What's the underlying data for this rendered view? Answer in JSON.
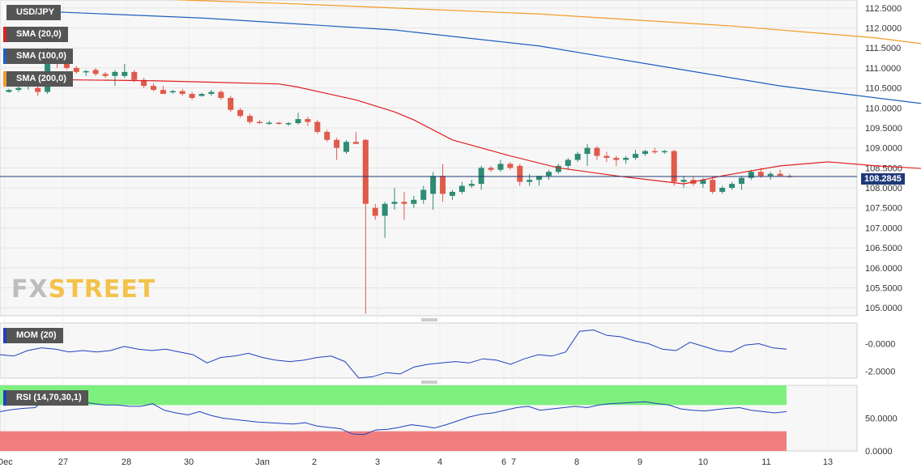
{
  "chart_data": {
    "type": "candlestick",
    "symbol": "USD/JPY",
    "current_price": "108.2845",
    "price_axis": {
      "ticks": [
        "112.5000",
        "112.0000",
        "111.5000",
        "111.0000",
        "110.5000",
        "110.0000",
        "109.5000",
        "109.0000",
        "108.5000",
        "108.0000",
        "107.5000",
        "107.0000",
        "106.5000",
        "106.0000",
        "105.5000",
        "105.0000"
      ],
      "ylim": [
        104.8,
        112.7
      ]
    },
    "x_tick_labels": [
      "Dec",
      "27",
      "28",
      "30",
      "Jan",
      "2",
      "3",
      "4",
      "6",
      "7",
      "8",
      "9",
      "10",
      "11",
      "13"
    ],
    "candles": [
      [
        110.4,
        110.48,
        110.38,
        110.45
      ],
      [
        110.45,
        110.55,
        110.4,
        110.5
      ],
      [
        110.55,
        110.65,
        110.45,
        110.6
      ],
      [
        110.5,
        110.9,
        110.3,
        110.4
      ],
      [
        110.4,
        111.5,
        110.35,
        111.4
      ],
      [
        111.35,
        111.4,
        111.0,
        111.1
      ],
      [
        111.1,
        111.2,
        110.95,
        111.0
      ],
      [
        111.0,
        111.05,
        110.85,
        110.9
      ],
      [
        110.9,
        110.95,
        110.8,
        110.92
      ],
      [
        110.95,
        111.0,
        110.8,
        110.85
      ],
      [
        110.85,
        110.9,
        110.75,
        110.8
      ],
      [
        110.8,
        110.95,
        110.55,
        110.9
      ],
      [
        110.8,
        111.1,
        110.75,
        110.9
      ],
      [
        110.9,
        110.95,
        110.65,
        110.7
      ],
      [
        110.7,
        110.75,
        110.5,
        110.55
      ],
      [
        110.55,
        110.62,
        110.42,
        110.45
      ],
      [
        110.45,
        110.55,
        110.4,
        110.35
      ],
      [
        110.4,
        110.45,
        110.35,
        110.42
      ],
      [
        110.42,
        110.48,
        110.3,
        110.35
      ],
      [
        110.35,
        110.4,
        110.2,
        110.25
      ],
      [
        110.3,
        110.38,
        110.28,
        110.35
      ],
      [
        110.35,
        110.45,
        110.3,
        110.4
      ],
      [
        110.4,
        110.45,
        110.2,
        110.25
      ],
      [
        110.25,
        110.3,
        109.9,
        109.95
      ],
      [
        109.95,
        110.0,
        109.75,
        109.8
      ],
      [
        109.8,
        109.85,
        109.6,
        109.65
      ],
      [
        109.65,
        109.7,
        109.6,
        109.62
      ],
      [
        109.62,
        109.68,
        109.58,
        109.63
      ],
      [
        109.63,
        109.65,
        109.58,
        109.6
      ],
      [
        109.6,
        109.65,
        109.55,
        109.62
      ],
      [
        109.62,
        109.88,
        109.58,
        109.72
      ],
      [
        109.72,
        109.78,
        109.55,
        109.65
      ],
      [
        109.65,
        109.7,
        109.35,
        109.4
      ],
      [
        109.4,
        109.45,
        109.15,
        109.2
      ],
      [
        109.2,
        109.25,
        108.7,
        109.0
      ],
      [
        108.9,
        109.2,
        108.85,
        109.15
      ],
      [
        109.15,
        109.4,
        109.1,
        109.1
      ],
      [
        109.2,
        109.22,
        104.85,
        107.6
      ],
      [
        107.5,
        107.6,
        107.2,
        107.3
      ],
      [
        107.3,
        107.65,
        106.75,
        107.6
      ],
      [
        107.6,
        108.0,
        107.45,
        107.65
      ],
      [
        107.65,
        107.9,
        107.2,
        107.6
      ],
      [
        107.6,
        107.8,
        107.5,
        107.7
      ],
      [
        107.7,
        108.05,
        107.6,
        107.95
      ],
      [
        107.85,
        108.4,
        107.45,
        108.3
      ],
      [
        108.3,
        108.6,
        107.65,
        107.85
      ],
      [
        107.8,
        107.95,
        107.7,
        107.9
      ],
      [
        107.9,
        108.15,
        107.85,
        108.05
      ],
      [
        108.05,
        108.2,
        108.0,
        108.1
      ],
      [
        108.1,
        108.55,
        107.95,
        108.5
      ],
      [
        108.5,
        108.55,
        108.4,
        108.45
      ],
      [
        108.45,
        108.7,
        108.4,
        108.6
      ],
      [
        108.6,
        108.65,
        108.45,
        108.5
      ],
      [
        108.55,
        108.6,
        108.05,
        108.15
      ],
      [
        108.15,
        108.35,
        108.05,
        108.2
      ],
      [
        108.2,
        108.3,
        108.05,
        108.3
      ],
      [
        108.3,
        108.45,
        108.2,
        108.4
      ],
      [
        108.4,
        108.6,
        108.35,
        108.55
      ],
      [
        108.55,
        108.75,
        108.45,
        108.7
      ],
      [
        108.7,
        108.9,
        108.65,
        108.85
      ],
      [
        108.85,
        109.1,
        108.55,
        109.0
      ],
      [
        109.0,
        109.05,
        108.7,
        108.8
      ],
      [
        108.8,
        108.9,
        108.65,
        108.75
      ],
      [
        108.75,
        108.8,
        108.55,
        108.7
      ],
      [
        108.7,
        108.8,
        108.6,
        108.75
      ],
      [
        108.75,
        108.95,
        108.7,
        108.85
      ],
      [
        108.85,
        108.95,
        108.8,
        108.92
      ],
      [
        108.92,
        109.0,
        108.85,
        108.9
      ],
      [
        108.9,
        108.95,
        108.85,
        108.92
      ],
      [
        108.92,
        108.95,
        108.05,
        108.15
      ],
      [
        108.15,
        108.3,
        108.0,
        108.2
      ],
      [
        108.2,
        108.28,
        108.05,
        108.1
      ],
      [
        108.1,
        108.25,
        108.0,
        108.2
      ],
      [
        108.2,
        108.3,
        107.85,
        107.9
      ],
      [
        107.9,
        108.05,
        107.85,
        108.0
      ],
      [
        108.0,
        108.15,
        107.95,
        108.1
      ],
      [
        108.1,
        108.3,
        107.95,
        108.25
      ],
      [
        108.25,
        108.45,
        108.2,
        108.4
      ],
      [
        108.4,
        108.5,
        108.25,
        108.3
      ],
      [
        108.3,
        108.4,
        108.2,
        108.35
      ],
      [
        108.35,
        108.45,
        108.3,
        108.3
      ],
      [
        108.3,
        108.35,
        108.25,
        108.28
      ]
    ],
    "sma": [
      {
        "name": "SMA (20,0)",
        "color": "#e02020",
        "points": [
          [
            0,
            110.72
          ],
          [
            15,
            110.68
          ],
          [
            28,
            110.6
          ],
          [
            30,
            110.52
          ],
          [
            36,
            110.2
          ],
          [
            40,
            109.9
          ],
          [
            42,
            109.7
          ],
          [
            46,
            109.2
          ],
          [
            52,
            108.8
          ],
          [
            57,
            108.5
          ],
          [
            63,
            108.3
          ],
          [
            70,
            108.1
          ],
          [
            74,
            108.3
          ],
          [
            80,
            108.55
          ],
          [
            85,
            108.65
          ],
          [
            90,
            108.55
          ],
          [
            95,
            108.48
          ],
          [
            100,
            108.45
          ],
          [
            103,
            108.38
          ]
        ]
      },
      {
        "name": "SMA (100,0)",
        "color": "#1f5fbf",
        "points": [
          [
            0,
            112.45
          ],
          [
            20,
            112.25
          ],
          [
            40,
            111.95
          ],
          [
            55,
            111.55
          ],
          [
            70,
            110.95
          ],
          [
            80,
            110.55
          ],
          [
            95,
            110.1
          ],
          [
            103,
            109.58
          ]
        ]
      },
      {
        "name": "SMA (200,0)",
        "color": "#f39c28",
        "points": [
          [
            0,
            112.85
          ],
          [
            30,
            112.6
          ],
          [
            55,
            112.35
          ],
          [
            75,
            112.05
          ],
          [
            90,
            111.75
          ],
          [
            103,
            111.35
          ]
        ]
      }
    ],
    "indicators": [
      {
        "name": "MOM (20)",
        "ticks": [
          "-0.0000",
          "-2.0000"
        ],
        "ylim": [
          -2.5,
          1.5
        ],
        "values": [
          -0.8,
          -0.9,
          -0.5,
          -0.3,
          -0.4,
          -0.6,
          -0.5,
          -0.6,
          -0.5,
          -0.2,
          -0.4,
          -0.5,
          -0.4,
          -0.6,
          -0.8,
          -1.4,
          -1.0,
          -0.9,
          -0.7,
          -1.0,
          -1.2,
          -1.3,
          -1.2,
          -1.0,
          -0.9,
          -1.3,
          -2.5,
          -2.4,
          -2.1,
          -2.2,
          -1.7,
          -1.5,
          -1.4,
          -1.3,
          -1.4,
          -1.1,
          -1.2,
          -1.5,
          -1.1,
          -0.8,
          -0.9,
          -0.6,
          0.9,
          1.0,
          0.6,
          0.5,
          0.2,
          0.0,
          -0.4,
          -0.5,
          0.1,
          -0.2,
          -0.5,
          -0.6,
          -0.1,
          0.0,
          -0.3,
          -0.4
        ]
      },
      {
        "name": "RSI (14,70,30,1)",
        "ticks": [
          "50.0000",
          "0.0000"
        ],
        "ylim": [
          0,
          100
        ],
        "overbought": 70,
        "oversold": 30,
        "values": [
          60,
          63,
          65,
          66,
          82,
          78,
          76,
          75,
          72,
          70,
          70,
          68,
          68,
          72,
          62,
          58,
          55,
          60,
          54,
          50,
          48,
          46,
          44,
          43,
          42,
          41,
          43,
          38,
          36,
          34,
          26,
          25,
          32,
          33,
          36,
          40,
          38,
          35,
          40,
          46,
          52,
          56,
          58,
          62,
          66,
          68,
          62,
          64,
          66,
          68,
          66,
          70,
          72,
          73,
          74,
          75,
          72,
          70,
          64,
          62,
          61,
          63,
          65,
          66,
          62,
          60,
          58,
          60
        ]
      }
    ],
    "watermark": "FXSTREET"
  },
  "ui": {
    "legend_symbol": "USD/JPY",
    "legend_sma20": "SMA (20,0)",
    "legend_sma100": "SMA (100,0)",
    "legend_sma200": "SMA (200,0)",
    "legend_mom": "MOM (20)",
    "legend_rsi": "RSI (14,70,30,1)",
    "price_label": "108.2845",
    "watermark_fx": "FX",
    "watermark_street": "STREET"
  },
  "colors": {
    "up": "#2e8b74",
    "down": "#e05a4a",
    "price_line": "#1f3a7a",
    "sma20": "#e02020",
    "sma100": "#1f5fbf",
    "sma200": "#f39c28",
    "rsi_top": "#7ef07e",
    "rsi_bottom": "#f07e7e",
    "rsi_line": "#2040c0",
    "mom_line": "#2040c0"
  }
}
